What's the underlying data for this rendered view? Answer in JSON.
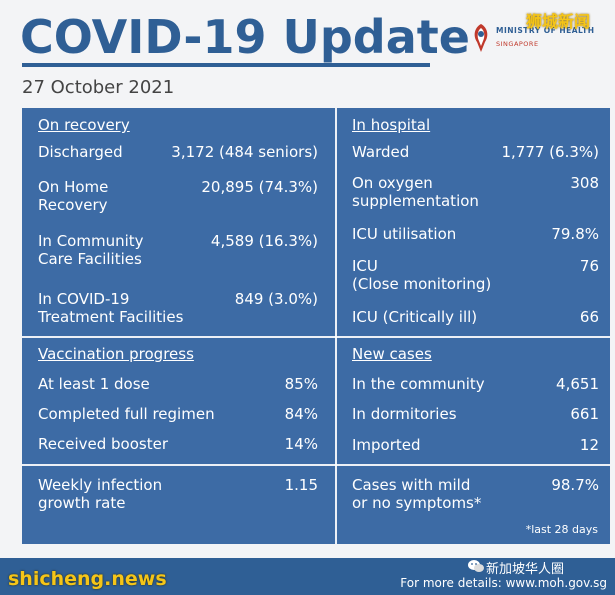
{
  "header": {
    "title": "COVID-19 Update",
    "date": "27 October 2021",
    "moh_name": "MINISTRY OF HEALTH",
    "moh_country": "SINGAPORE"
  },
  "watermarks": {
    "corner": "狮城新闻",
    "site": "shicheng.news",
    "account": "新加坡华人圈"
  },
  "recovery": {
    "heading": "On recovery",
    "rows": [
      {
        "label": "Discharged",
        "value": "3,172 (484 seniors)"
      },
      {
        "label": "On Home\nRecovery",
        "value": "20,895 (74.3%)"
      },
      {
        "label": "In Community\nCare Facilities",
        "value": "4,589 (16.3%)"
      },
      {
        "label": "In COVID-19\nTreatment Facilities",
        "value": "849 (3.0%)"
      }
    ]
  },
  "hospital": {
    "heading": "In hospital",
    "rows": [
      {
        "label": "Warded",
        "value": "1,777 (6.3%)"
      },
      {
        "label": "On oxygen\nsupplementation",
        "value": "308"
      },
      {
        "label": "ICU utilisation",
        "value": "79.8%"
      },
      {
        "label": "ICU\n(Close monitoring)",
        "value": "76"
      },
      {
        "label": "ICU (Critically ill)",
        "value": "66"
      }
    ]
  },
  "vaccination": {
    "heading": "Vaccination progress",
    "rows": [
      {
        "label": "At least 1 dose",
        "value": "85%"
      },
      {
        "label": "Completed full regimen",
        "value": "84%"
      },
      {
        "label": "Received booster",
        "value": "14%"
      }
    ]
  },
  "new_cases": {
    "heading": "New cases",
    "rows": [
      {
        "label": "In the community",
        "value": "4,651"
      },
      {
        "label": "In dormitories",
        "value": "661"
      },
      {
        "label": "Imported",
        "value": "12"
      }
    ]
  },
  "growth": {
    "label": "Weekly infection\ngrowth rate",
    "value": "1.15"
  },
  "mild": {
    "label": "Cases with mild\nor no symptoms*",
    "value": "98.7%"
  },
  "footnote": "*last 28 days",
  "footer": {
    "details": "For more details: www.moh.gov.sg"
  },
  "colors": {
    "brand": "#2f5f95",
    "panel": "#3d6ba5",
    "watermark": "#f5c518"
  }
}
